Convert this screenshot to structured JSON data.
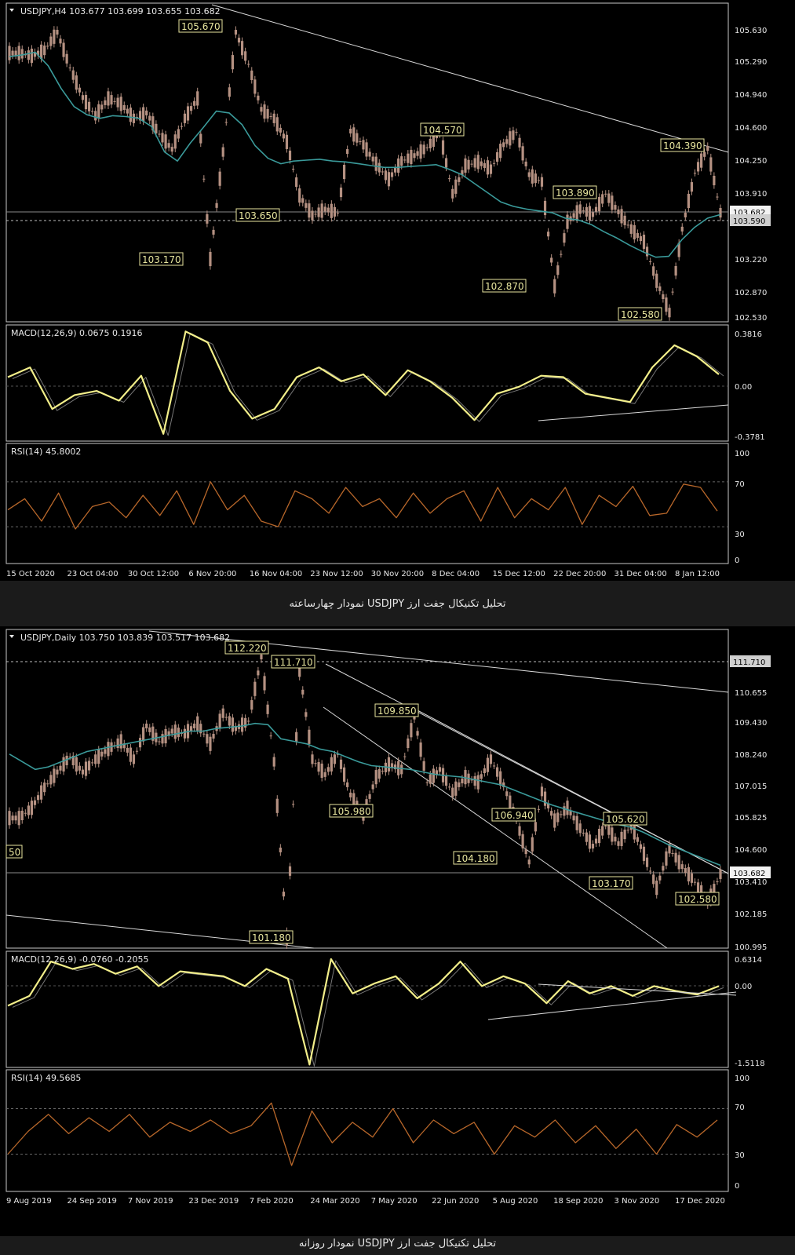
{
  "chart_data": [
    {
      "type": "line",
      "symbol_header": "USDJPY,H4  103.677 103.699 103.655 103.682",
      "price_axis": {
        "ticks": [
          "105.630",
          "105.290",
          "104.940",
          "104.600",
          "104.250",
          "103.910",
          "103.220",
          "102.870",
          "102.530"
        ],
        "current_price_label": "103.682",
        "line_price_label": "103.590",
        "ylim": [
          102.53,
          105.8
        ]
      },
      "x_tick_labels": [
        "15 Oct 2020",
        "23 Oct 04:00",
        "30 Oct 12:00",
        "6 Nov 20:00",
        "16 Nov 04:00",
        "23 Nov 12:00",
        "30 Nov 20:00",
        "8 Dec 04:00",
        "15 Dec 12:00",
        "22 Dec 20:00",
        "31 Dec 04:00",
        "8 Jan 12:00"
      ],
      "price_annotations": [
        "105.670",
        "103.170",
        "103.650",
        "104.570",
        "102.870",
        "103.890",
        "102.580",
        "104.390"
      ],
      "series": [
        {
          "values": [
            105.44,
            105.41,
            105.47,
            105.67,
            105.28,
            104.95,
            104.75,
            104.94,
            104.88,
            104.72,
            104.78,
            104.55,
            104.38,
            104.72,
            104.94,
            103.17,
            104.35,
            105.67,
            105.32,
            104.82,
            104.72,
            104.46,
            103.87,
            103.65,
            103.72,
            103.68,
            104.58,
            104.43,
            104.22,
            104.05,
            104.25,
            104.31,
            104.4,
            104.57,
            103.89,
            104.2,
            104.24,
            104.16,
            104.43,
            104.57,
            104.1,
            104.02,
            102.87,
            103.58,
            103.72,
            103.66,
            103.89,
            103.69,
            103.5,
            103.36,
            102.93,
            102.58,
            103.5,
            104.12,
            104.39,
            103.68
          ]
        },
        {
          "values": [
            105.4,
            105.42,
            105.45,
            105.3,
            105.05,
            104.85,
            104.76,
            104.72,
            104.75,
            104.74,
            104.72,
            104.63,
            104.35,
            104.25,
            104.45,
            104.62,
            104.8,
            104.78,
            104.65,
            104.42,
            104.28,
            104.22,
            104.25,
            104.26,
            104.27,
            104.25,
            104.24,
            104.22,
            104.2,
            104.18,
            104.18,
            104.19,
            104.2,
            104.21,
            104.16,
            104.1,
            104.0,
            103.9,
            103.8,
            103.75,
            103.72,
            103.7,
            103.68,
            103.62,
            103.6,
            103.55,
            103.47,
            103.4,
            103.32,
            103.25,
            103.19,
            103.2,
            103.38,
            103.52,
            103.62,
            103.66
          ]
        }
      ],
      "macd": {
        "header": "MACD(12,26,9) 0.0675 0.1916",
        "ticks": [
          "0.3816",
          "0.00",
          "-0.3781"
        ],
        "ylim": [
          -0.3781,
          0.3816
        ],
        "values": [
          0.05,
          0.12,
          -0.18,
          -0.08,
          -0.05,
          -0.12,
          0.06,
          -0.36,
          0.38,
          0.3,
          -0.05,
          -0.25,
          -0.18,
          0.05,
          0.12,
          0.02,
          0.07,
          -0.08,
          0.1,
          0.02,
          -0.1,
          -0.26,
          -0.07,
          -0.02,
          0.06,
          0.05,
          -0.07,
          -0.1,
          -0.13,
          0.12,
          0.28,
          0.2,
          0.07
        ]
      },
      "rsi": {
        "header": "RSI(14) 45.8002",
        "ticks": [
          "100",
          "70",
          "30",
          "0"
        ],
        "levels": [
          70,
          30
        ],
        "values": [
          45,
          55,
          35,
          60,
          28,
          48,
          52,
          38,
          58,
          40,
          62,
          32,
          70,
          45,
          58,
          35,
          30,
          62,
          55,
          42,
          65,
          48,
          55,
          38,
          60,
          42,
          55,
          62,
          35,
          65,
          38,
          55,
          45,
          65,
          32,
          58,
          48,
          66,
          40,
          42,
          68,
          65,
          44
        ]
      }
    },
    {
      "type": "line",
      "symbol_header": "USDJPY,Daily  103.750 103.839 103.517 103.682",
      "price_axis": {
        "ticks": [
          "110.655",
          "109.430",
          "108.240",
          "107.015",
          "105.825",
          "104.600",
          "103.410",
          "102.185",
          "100.995"
        ],
        "current_price_label": "103.682",
        "line_price_label": "111.710",
        "ylim": [
          100.995,
          112.6
        ]
      },
      "x_tick_labels": [
        "9 Aug 2019",
        "24 Sep 2019",
        "7 Nov 2019",
        "23 Dec 2019",
        "7 Feb 2020",
        "24 Mar 2020",
        "7 May 2020",
        "22 Jun 2020",
        "5 Aug 2020",
        "18 Sep 2020",
        "3 Nov 2020",
        "17 Dec 2020"
      ],
      "price_annotations": [
        "112.220",
        "111.710",
        "101.180",
        "109.850",
        "105.980",
        "104.180",
        "106.940",
        "105.620",
        "103.170",
        "102.580"
      ],
      "edge_label": "50",
      "series": [
        {
          "values": [
            105.9,
            106.3,
            107.1,
            107.7,
            108.3,
            107.7,
            108.2,
            108.6,
            108.9,
            108.2,
            109.5,
            108.9,
            109.3,
            109.2,
            109.6,
            108.8,
            110.0,
            109.4,
            109.7,
            112.2,
            108.1,
            101.2,
            111.7,
            108.2,
            107.6,
            108.4,
            106.8,
            105.98,
            107.5,
            108.0,
            107.8,
            109.85,
            107.3,
            107.8,
            106.9,
            107.5,
            107.3,
            108.2,
            107.2,
            105.8,
            104.18,
            106.94,
            105.8,
            106.3,
            105.5,
            104.8,
            105.6,
            104.9,
            105.62,
            104.5,
            103.17,
            104.7,
            104.0,
            103.4,
            102.58,
            103.7
          ]
        },
        {
          "values": [
            108.4,
            108.1,
            107.8,
            107.9,
            108.1,
            108.3,
            108.5,
            108.6,
            108.7,
            108.8,
            108.9,
            109.0,
            109.1,
            109.2,
            109.3,
            109.3,
            109.4,
            109.45,
            109.5,
            109.6,
            109.55,
            109.0,
            108.9,
            108.8,
            108.6,
            108.5,
            108.3,
            108.1,
            107.95,
            107.9,
            107.85,
            107.8,
            107.7,
            107.6,
            107.55,
            107.5,
            107.4,
            107.3,
            107.2,
            107.0,
            106.8,
            106.6,
            106.4,
            106.25,
            106.1,
            105.95,
            105.8,
            105.65,
            105.55,
            105.35,
            105.1,
            104.85,
            104.65,
            104.45,
            104.25,
            104.05
          ]
        }
      ],
      "macd": {
        "header": "MACD(12,26,9) -0.0760 -0.2055",
        "ticks": [
          "0.6314",
          "0.00",
          "-1.5118"
        ],
        "ylim": [
          -1.5118,
          0.6314
        ],
        "values": [
          -0.35,
          -0.15,
          0.55,
          0.4,
          0.5,
          0.3,
          0.45,
          0.05,
          0.35,
          0.3,
          0.25,
          0.05,
          0.4,
          0.2,
          -1.55,
          0.6,
          -0.1,
          0.1,
          0.25,
          -0.2,
          0.1,
          0.55,
          0.05,
          0.25,
          0.1,
          -0.3,
          0.15,
          -0.1,
          0.05,
          -0.15,
          0.05,
          -0.05,
          -0.12,
          0.05
        ]
      },
      "rsi": {
        "header": "RSI(14) 49.5685",
        "ticks": [
          "100",
          "70",
          "30",
          "0"
        ],
        "levels": [
          70,
          30
        ],
        "values": [
          30,
          50,
          65,
          48,
          62,
          50,
          65,
          45,
          58,
          50,
          60,
          48,
          55,
          75,
          20,
          68,
          40,
          58,
          45,
          70,
          40,
          60,
          48,
          58,
          30,
          55,
          45,
          60,
          40,
          55,
          35,
          52,
          30,
          56,
          45,
          60
        ]
      }
    }
  ],
  "captions": [
    "تحلیل تکنیکال جفت ارز USDJPY نمودار چهارساعته",
    "تحلیل تکنیکال جفت ارز USDJPY نمودار روزانه"
  ],
  "colors": {
    "background": "#000000",
    "frame": "#c8c8c8",
    "candles": "#b59182",
    "moving_average": "#3a9a9a",
    "macd": "#f3ef8a",
    "rsi": "#b8672a",
    "label_box": "#e7e59e",
    "trendline": "#d8d8d8"
  }
}
